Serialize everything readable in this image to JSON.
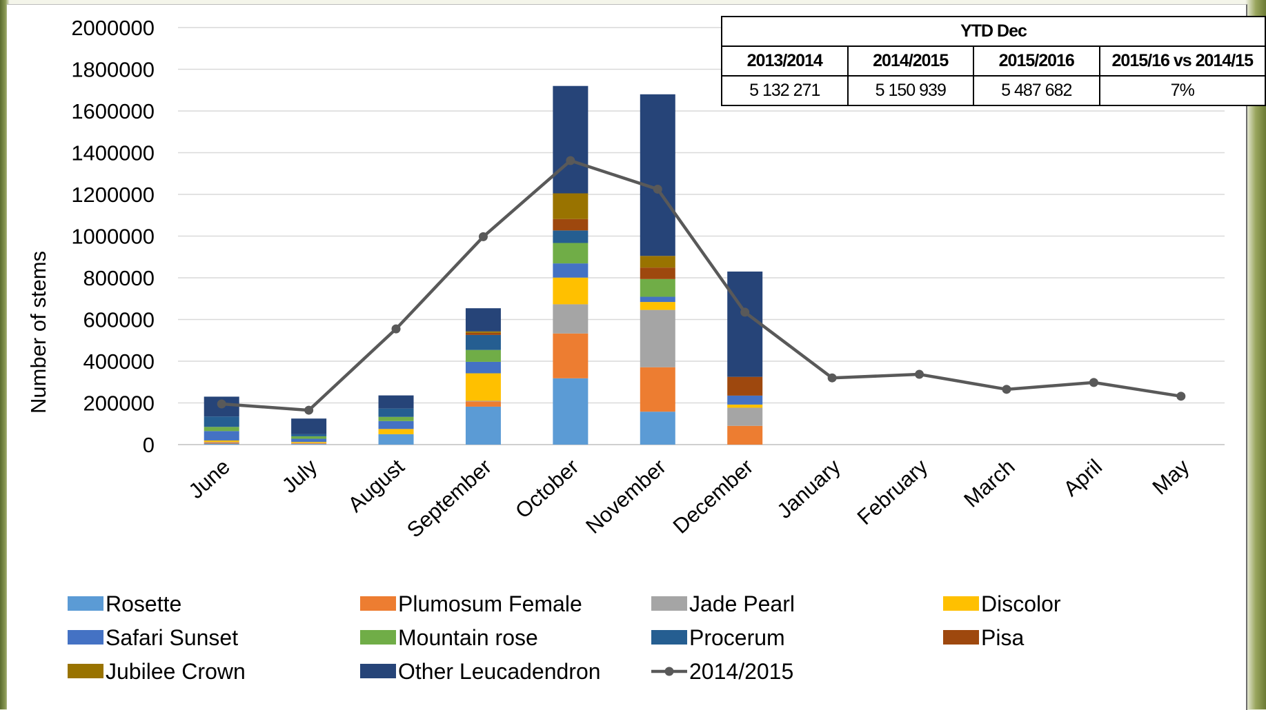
{
  "chart_data": {
    "type": "bar",
    "stacked": true,
    "ylabel": "Number of stems",
    "ylim": [
      0,
      2000000
    ],
    "yticks": [
      0,
      200000,
      400000,
      600000,
      800000,
      1000000,
      1200000,
      1400000,
      1600000,
      1800000,
      2000000
    ],
    "grid": true,
    "legend_position": "bottom",
    "categories": [
      "June",
      "July",
      "August",
      "September",
      "October",
      "November",
      "December",
      "January",
      "February",
      "March",
      "April",
      "May"
    ],
    "series": [
      {
        "name": "Rosette",
        "color": "#5b9bd5",
        "values": [
          5000,
          3000,
          50000,
          182000,
          318000,
          158000,
          0,
          0,
          0,
          0,
          0,
          0
        ]
      },
      {
        "name": "Plumosum Female",
        "color": "#ed7d31",
        "values": [
          5000,
          3000,
          0,
          25000,
          215000,
          213000,
          90000,
          0,
          0,
          0,
          0,
          0
        ]
      },
      {
        "name": "Jade Pearl",
        "color": "#a5a5a5",
        "values": [
          3000,
          2000,
          0,
          3000,
          140000,
          275000,
          87000,
          0,
          0,
          0,
          0,
          0
        ]
      },
      {
        "name": "Discolor",
        "color": "#ffc000",
        "values": [
          7000,
          5000,
          25000,
          132000,
          128000,
          38000,
          15000,
          0,
          0,
          0,
          0,
          0
        ]
      },
      {
        "name": "Safari Sunset",
        "color": "#4472c4",
        "values": [
          45000,
          15000,
          38000,
          55000,
          68000,
          25000,
          43000,
          0,
          0,
          0,
          0,
          0
        ]
      },
      {
        "name": "Mountain rose",
        "color": "#70ad47",
        "values": [
          20000,
          12000,
          20000,
          57000,
          98000,
          85000,
          0,
          0,
          0,
          0,
          0,
          0
        ]
      },
      {
        "name": "Procerum",
        "color": "#255e91",
        "values": [
          50000,
          10000,
          40000,
          72000,
          60000,
          0,
          0,
          0,
          0,
          0,
          0,
          0
        ]
      },
      {
        "name": "Pisa",
        "color": "#9e480e",
        "values": [
          0,
          0,
          0,
          10000,
          55000,
          55000,
          90000,
          0,
          0,
          0,
          0,
          0
        ]
      },
      {
        "name": "Jubilee Crown",
        "color": "#997300",
        "values": [
          0,
          0,
          0,
          7000,
          123000,
          56000,
          0,
          0,
          0,
          0,
          0,
          0
        ]
      },
      {
        "name": "Other Leucadendron",
        "color": "#264478",
        "values": [
          95000,
          75000,
          63000,
          111000,
          515000,
          775000,
          505000,
          0,
          0,
          0,
          0,
          0
        ]
      }
    ],
    "line": {
      "name": "2014/2015",
      "color": "#595959",
      "values": [
        195000,
        165000,
        555000,
        997000,
        1362000,
        1225000,
        635000,
        320000,
        337000,
        265000,
        298000,
        232000
      ]
    }
  },
  "ytd_table": {
    "title": "YTD Dec",
    "headers": [
      "2013/2014",
      "2014/2015",
      "2015/2016",
      "2015/16 vs 2014/15"
    ],
    "values": [
      "5 132 271",
      "5 150 939",
      "5 487 682",
      "7%"
    ]
  }
}
